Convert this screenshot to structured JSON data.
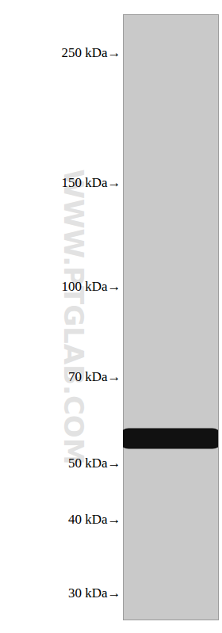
{
  "chart_data": {
    "type": "blot",
    "categories": [
      null
    ],
    "values": [
      55
    ],
    "color": "#111111",
    "log": "y",
    "ylim": [
      27,
      290
    ],
    "yticks": [
      {
        "value": 250,
        "label": "250 kDa→"
      },
      {
        "value": 150,
        "label": "150 kDa→"
      },
      {
        "value": 100,
        "label": "100 kDa→"
      },
      {
        "value": 70,
        "label": "70 kDa→"
      },
      {
        "value": 50,
        "label": "50 kDa→"
      },
      {
        "value": 40,
        "label": "40 kDa→"
      },
      {
        "value": 30,
        "label": "30 kDa→"
      }
    ],
    "annotations": [
      "WWW.PTGLAB.COM"
    ]
  }
}
